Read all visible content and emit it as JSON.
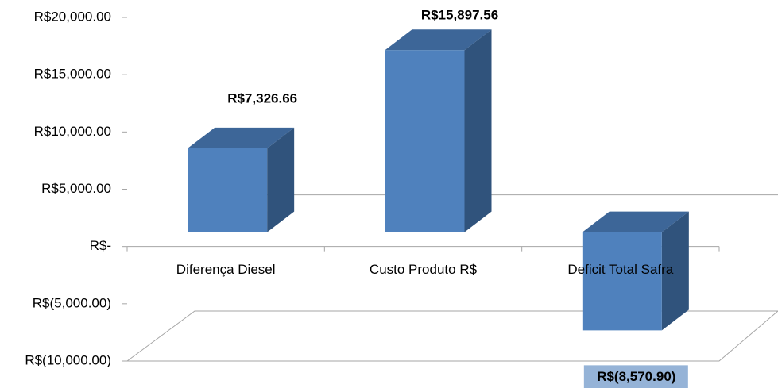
{
  "chart_data": {
    "type": "bar3d",
    "categories": [
      "Diferença Diesel",
      "Custo Produto R$",
      "Deficit Total Safra"
    ],
    "values": [
      7326.66,
      15897.56,
      -8570.9
    ],
    "value_labels": [
      "R$7,326.66",
      "R$15,897.56",
      "R$(8,570.90)"
    ],
    "color": "#4f81bd",
    "ylim": [
      -10000,
      20000
    ],
    "yticks": [
      {
        "value": 20000,
        "label": "R$20,000.00"
      },
      {
        "value": 15000,
        "label": "R$15,000.00"
      },
      {
        "value": 10000,
        "label": "R$10,000.00"
      },
      {
        "value": 5000,
        "label": "R$5,000.00"
      },
      {
        "value": 0,
        "label": "R$-"
      },
      {
        "value": -5000,
        "label": "R$(5,000.00)"
      },
      {
        "value": -10000,
        "label": "R$(10,000.00)"
      }
    ]
  }
}
